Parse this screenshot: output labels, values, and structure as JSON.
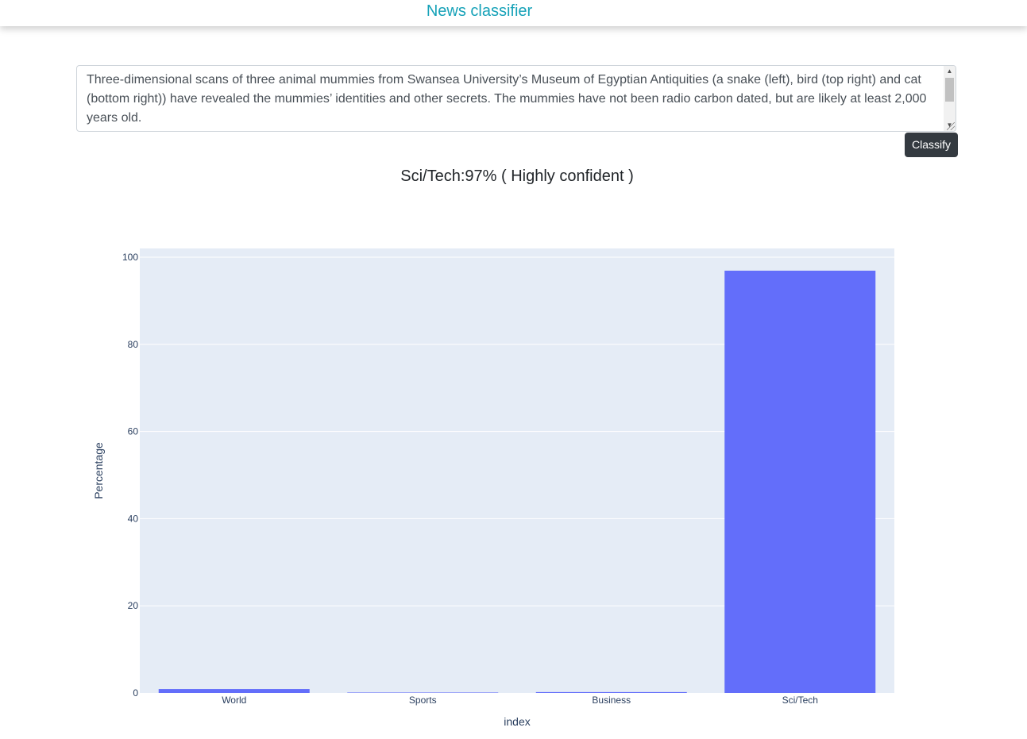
{
  "header": {
    "title": "News classifier"
  },
  "input": {
    "text": "Three-dimensional scans of three animal mummies from Swansea University’s Museum of Egyptian Antiquities (a snake (left), bird (top right) and cat (bottom right)) have revealed the mummies’ identities and other secrets. The mummies have not been radio carbon dated, but are likely at least 2,000 years old."
  },
  "actions": {
    "classify_label": "Classify"
  },
  "result": {
    "text": "Sci/Tech:97% ( Highly confident )"
  },
  "colors": {
    "accent": "#17a2b8",
    "bar": "#636efa",
    "plot_bg": "#e5ecf6",
    "button": "#343a40"
  },
  "chart_data": {
    "type": "bar",
    "categories": [
      "World",
      "Sports",
      "Business",
      "Sci/Tech"
    ],
    "values": [
      0.9,
      0.1,
      0.2,
      96.9
    ],
    "xlabel": "index",
    "ylabel": "Percentage",
    "ylim": [
      0,
      102
    ],
    "yticks": [
      0,
      20,
      40,
      60,
      80,
      100
    ],
    "grid": true
  }
}
